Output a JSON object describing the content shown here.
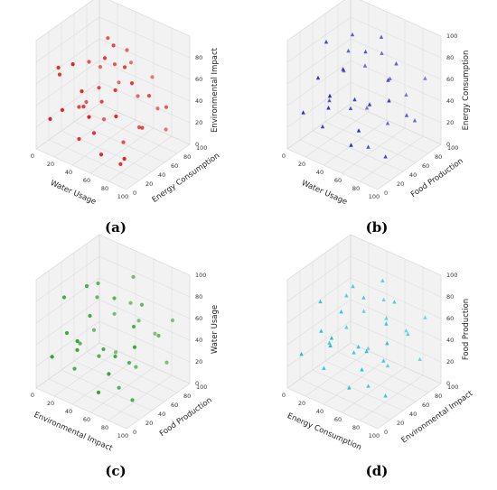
{
  "chart_data": [
    {
      "type": "scatter",
      "panel_label": "(a)",
      "color": "#e31a1c",
      "marker": "circle",
      "xlabel": "Water Usage",
      "ylabel": "Energy Consumption",
      "zlabel": "Environmental Impact",
      "xlim": [
        0,
        100
      ],
      "ylim": [
        0,
        100
      ],
      "zlim": [
        0,
        100
      ],
      "xticks": [
        "0",
        "20",
        "40",
        "60",
        "80",
        "100"
      ],
      "yticks": [
        "0",
        "20",
        "40",
        "60",
        "80",
        "100"
      ],
      "zticks": [
        "0",
        "20",
        "40",
        "60",
        "80"
      ],
      "points": [
        [
          12,
          18,
          72
        ],
        [
          35,
          8,
          88
        ],
        [
          55,
          30,
          92
        ],
        [
          70,
          40,
          85
        ],
        [
          20,
          55,
          65
        ],
        [
          45,
          60,
          70
        ],
        [
          80,
          12,
          55
        ],
        [
          15,
          80,
          48
        ],
        [
          60,
          75,
          40
        ],
        [
          90,
          50,
          62
        ],
        [
          28,
          35,
          35
        ],
        [
          50,
          20,
          25
        ],
        [
          75,
          85,
          30
        ],
        [
          38,
          45,
          52
        ],
        [
          65,
          10,
          15
        ],
        [
          10,
          65,
          20
        ],
        [
          85,
          30,
          80
        ],
        [
          42,
          90,
          58
        ],
        [
          30,
          25,
          10
        ],
        [
          58,
          55,
          5
        ],
        [
          95,
          70,
          45
        ],
        [
          22,
          10,
          40
        ],
        [
          48,
          75,
          78
        ],
        [
          68,
          28,
          68
        ],
        [
          18,
          42,
          28
        ],
        [
          82,
          88,
          12
        ],
        [
          36,
          62,
          90
        ],
        [
          55,
          5,
          48
        ],
        [
          5,
          30,
          58
        ],
        [
          72,
          60,
          22
        ],
        [
          40,
          15,
          62
        ],
        [
          88,
          42,
          35
        ],
        [
          26,
          70,
          8
        ],
        [
          62,
          95,
          50
        ],
        [
          12,
          5,
          30
        ],
        [
          52,
          48,
          95
        ],
        [
          78,
          22,
          6
        ],
        [
          32,
          85,
          38
        ],
        [
          92,
          8,
          22
        ],
        [
          46,
          38,
          45
        ]
      ]
    },
    {
      "type": "scatter",
      "panel_label": "(b)",
      "color": "#1f1fd1",
      "marker": "triangle",
      "xlabel": "Water Usage",
      "ylabel": "Food Production",
      "zlabel": "Energy Consumption",
      "xlim": [
        0,
        100
      ],
      "ylim": [
        0,
        100
      ],
      "zlim": [
        0,
        100
      ],
      "xticks": [
        "0",
        "20",
        "40",
        "60",
        "80",
        "100"
      ],
      "yticks": [
        "0",
        "20",
        "40",
        "60",
        "80",
        "100"
      ],
      "zticks": [
        "0",
        "20",
        "40",
        "60",
        "80",
        "100"
      ],
      "points": [
        [
          15,
          40,
          88
        ],
        [
          30,
          60,
          92
        ],
        [
          55,
          70,
          95
        ],
        [
          80,
          45,
          75
        ],
        [
          20,
          20,
          65
        ],
        [
          45,
          85,
          70
        ],
        [
          70,
          30,
          55
        ],
        [
          90,
          60,
          40
        ],
        [
          10,
          75,
          45
        ],
        [
          35,
          50,
          30
        ],
        [
          60,
          15,
          20
        ],
        [
          85,
          80,
          25
        ],
        [
          25,
          90,
          10
        ],
        [
          50,
          35,
          50
        ],
        [
          75,
          65,
          80
        ],
        [
          40,
          10,
          60
        ],
        [
          65,
          95,
          35
        ],
        [
          18,
          30,
          15
        ],
        [
          95,
          25,
          70
        ],
        [
          48,
          55,
          85
        ],
        [
          30,
          80,
          55
        ],
        [
          58,
          45,
          5
        ],
        [
          8,
          55,
          25
        ],
        [
          72,
          10,
          40
        ],
        [
          88,
          92,
          60
        ],
        [
          42,
          28,
          78
        ],
        [
          62,
          70,
          18
        ],
        [
          22,
          65,
          72
        ],
        [
          82,
          38,
          8
        ],
        [
          35,
          15,
          45
        ],
        [
          52,
          88,
          48
        ],
        [
          12,
          8,
          35
        ]
      ]
    },
    {
      "type": "scatter",
      "panel_label": "(c)",
      "color": "#2ca02c",
      "marker": "circle",
      "xlabel": "Environmental Impact",
      "ylabel": "Food Production",
      "zlabel": "Water Usage",
      "xlim": [
        0,
        100
      ],
      "ylim": [
        0,
        100
      ],
      "zlim": [
        0,
        100
      ],
      "xticks": [
        "0",
        "20",
        "40",
        "60",
        "80",
        "100"
      ],
      "yticks": [
        "0",
        "20",
        "40",
        "60",
        "80",
        "100"
      ],
      "zticks": [
        "0",
        "20",
        "40",
        "60",
        "80",
        "100"
      ],
      "points": [
        [
          10,
          30,
          75
        ],
        [
          30,
          55,
          85
        ],
        [
          55,
          75,
          92
        ],
        [
          80,
          40,
          70
        ],
        [
          20,
          20,
          50
        ],
        [
          45,
          85,
          60
        ],
        [
          70,
          25,
          45
        ],
        [
          90,
          65,
          55
        ],
        [
          15,
          70,
          30
        ],
        [
          38,
          45,
          25
        ],
        [
          62,
          10,
          15
        ],
        [
          85,
          85,
          20
        ],
        [
          25,
          90,
          5
        ],
        [
          50,
          35,
          40
        ],
        [
          75,
          60,
          80
        ],
        [
          40,
          8,
          55
        ],
        [
          65,
          95,
          35
        ],
        [
          18,
          35,
          10
        ],
        [
          95,
          20,
          65
        ],
        [
          48,
          55,
          78
        ],
        [
          32,
          78,
          48
        ],
        [
          58,
          48,
          2
        ],
        [
          8,
          58,
          20
        ],
        [
          72,
          12,
          35
        ],
        [
          88,
          90,
          58
        ],
        [
          42,
          25,
          72
        ],
        [
          60,
          72,
          12
        ],
        [
          22,
          65,
          65
        ],
        [
          82,
          35,
          5
        ],
        [
          35,
          15,
          42
        ],
        [
          52,
          88,
          45
        ],
        [
          12,
          8,
          30
        ],
        [
          68,
          50,
          28
        ],
        [
          28,
          40,
          88
        ]
      ]
    },
    {
      "type": "scatter",
      "panel_label": "(d)",
      "color": "#17becf",
      "marker": "triangle",
      "xlabel": "Energy Consumption",
      "ylabel": "Environmental Impact",
      "zlabel": "Food Production",
      "xlim": [
        0,
        100
      ],
      "ylim": [
        0,
        100
      ],
      "zlim": [
        0,
        100
      ],
      "xticks": [
        "0",
        "20",
        "40",
        "60",
        "80",
        "100"
      ],
      "yticks": [
        "0",
        "20",
        "40",
        "60",
        "80",
        "100"
      ],
      "zticks": [
        "0",
        "20",
        "40",
        "60",
        "80",
        "100"
      ],
      "points": [
        [
          12,
          35,
          70
        ],
        [
          32,
          58,
          82
        ],
        [
          55,
          72,
          90
        ],
        [
          80,
          42,
          72
        ],
        [
          22,
          22,
          52
        ],
        [
          45,
          88,
          62
        ],
        [
          68,
          28,
          48
        ],
        [
          90,
          62,
          58
        ],
        [
          15,
          72,
          32
        ],
        [
          40,
          48,
          28
        ],
        [
          60,
          12,
          18
        ],
        [
          85,
          88,
          22
        ],
        [
          25,
          92,
          8
        ],
        [
          52,
          38,
          42
        ],
        [
          75,
          62,
          82
        ],
        [
          42,
          10,
          58
        ],
        [
          65,
          95,
          38
        ],
        [
          18,
          32,
          12
        ],
        [
          95,
          22,
          68
        ],
        [
          48,
          52,
          80
        ],
        [
          30,
          78,
          50
        ],
        [
          58,
          45,
          5
        ],
        [
          8,
          55,
          22
        ],
        [
          72,
          15,
          38
        ],
        [
          88,
          92,
          60
        ],
        [
          40,
          28,
          74
        ],
        [
          62,
          70,
          15
        ],
        [
          22,
          62,
          68
        ],
        [
          82,
          38,
          8
        ],
        [
          35,
          18,
          45
        ],
        [
          50,
          85,
          48
        ],
        [
          10,
          8,
          32
        ],
        [
          70,
          52,
          30
        ]
      ]
    }
  ]
}
